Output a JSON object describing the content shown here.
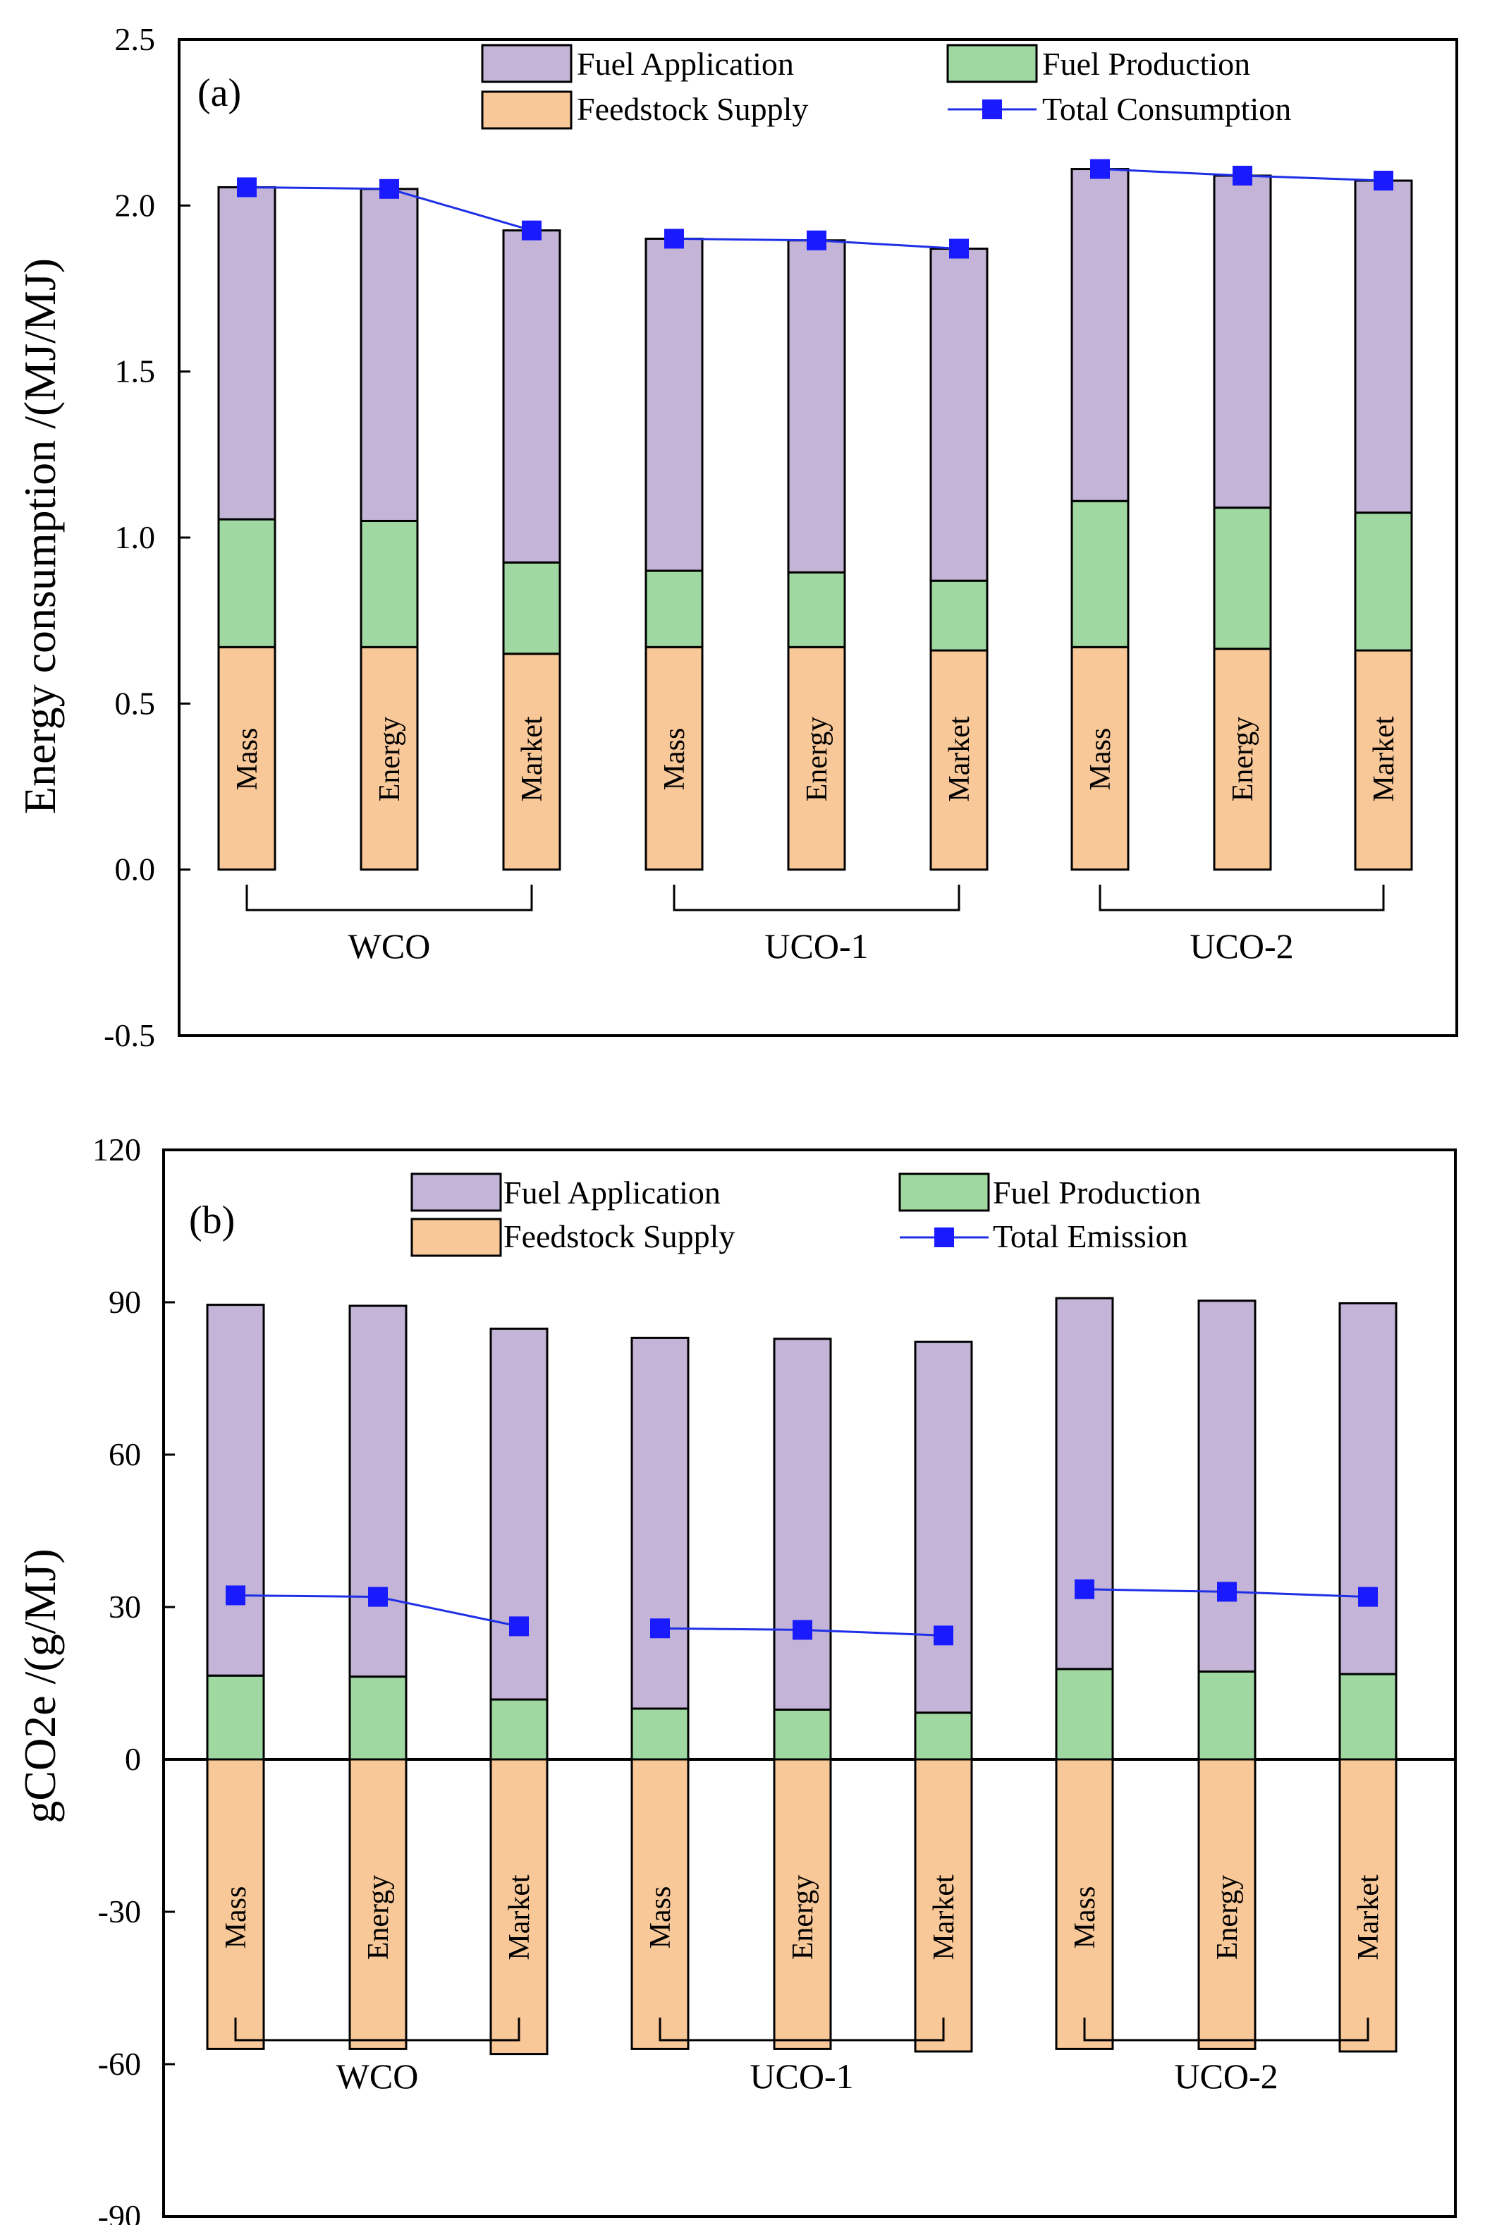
{
  "colors": {
    "fuel_application": "#c3b4d8",
    "fuel_production": "#9fd9a1",
    "feedstock_supply": "#f9c899",
    "total_line": "#1f2fe6",
    "total_marker": "#1a1aff"
  },
  "chart_data": [
    {
      "type": "bar",
      "stacked": true,
      "panel": "(a)",
      "ylabel": "Energy consumption /(MJ/MJ)",
      "ylim": [
        -0.5,
        2.5
      ],
      "yticks": [
        "-0.5",
        "0.0",
        "0.5",
        "1.0",
        "1.5",
        "2.0",
        "2.5"
      ],
      "ytick_values": [
        -0.5,
        0.0,
        0.5,
        1.0,
        1.5,
        2.0,
        2.5
      ],
      "categories": [
        "Mass",
        "Energy",
        "Market",
        "Mass",
        "Energy",
        "Market",
        "Mass",
        "Energy",
        "Market"
      ],
      "groups": [
        {
          "label": "WCO",
          "span": [
            0,
            2
          ]
        },
        {
          "label": "UCO-1",
          "span": [
            3,
            5
          ]
        },
        {
          "label": "UCO-2",
          "span": [
            6,
            8
          ]
        }
      ],
      "legend": {
        "fuel_application": "Fuel Application",
        "fuel_production": "Fuel Production",
        "feedstock_supply": "Feedstock Supply",
        "total": "Total Consumption"
      },
      "series": [
        {
          "name": "Feedstock Supply",
          "values": [
            0.67,
            0.67,
            0.65,
            0.67,
            0.67,
            0.66,
            0.67,
            0.665,
            0.66
          ]
        },
        {
          "name": "Fuel Production",
          "values": [
            0.385,
            0.38,
            0.275,
            0.23,
            0.225,
            0.21,
            0.44,
            0.425,
            0.415
          ]
        },
        {
          "name": "Fuel Application",
          "values": [
            1.0,
            1.0,
            1.0,
            1.0,
            1.0,
            1.0,
            1.0,
            1.0,
            1.0
          ]
        }
      ],
      "total": {
        "name": "Total Consumption",
        "values": [
          2.055,
          2.05,
          1.925,
          1.9,
          1.895,
          1.87,
          2.11,
          2.09,
          2.075
        ]
      }
    },
    {
      "type": "bar",
      "stacked": true,
      "panel": "(b)",
      "ylabel": "gCO2e /(g/MJ)",
      "ylim": [
        -90,
        120
      ],
      "yticks": [
        "-90",
        "-60",
        "-30",
        "0",
        "30",
        "60",
        "90",
        "120"
      ],
      "ytick_values": [
        -90,
        -60,
        -30,
        0,
        30,
        60,
        90,
        120
      ],
      "categories": [
        "Mass",
        "Energy",
        "Market",
        "Mass",
        "Energy",
        "Market",
        "Mass",
        "Energy",
        "Market"
      ],
      "groups": [
        {
          "label": "WCO",
          "span": [
            0,
            2
          ]
        },
        {
          "label": "UCO-1",
          "span": [
            3,
            5
          ]
        },
        {
          "label": "UCO-2",
          "span": [
            6,
            8
          ]
        }
      ],
      "legend": {
        "fuel_application": "Fuel Application",
        "fuel_production": "Fuel Production",
        "feedstock_supply": "Feedstock Supply",
        "total": "Total Emission"
      },
      "series": [
        {
          "name": "Feedstock Supply",
          "values": [
            -57.0,
            -57.0,
            -58.0,
            -57.0,
            -57.0,
            -57.5,
            -57.0,
            -57.0,
            -57.5
          ]
        },
        {
          "name": "Fuel Production",
          "values": [
            16.5,
            16.3,
            11.8,
            10.0,
            9.8,
            9.2,
            17.8,
            17.3,
            16.8
          ]
        },
        {
          "name": "Fuel Application",
          "values": [
            73.0,
            73.0,
            73.0,
            73.0,
            73.0,
            73.0,
            73.0,
            73.0,
            73.0
          ]
        }
      ],
      "total": {
        "name": "Total Emission",
        "values": [
          32.3,
          32.0,
          26.2,
          25.8,
          25.5,
          24.4,
          33.5,
          33.0,
          32.0
        ]
      }
    }
  ]
}
